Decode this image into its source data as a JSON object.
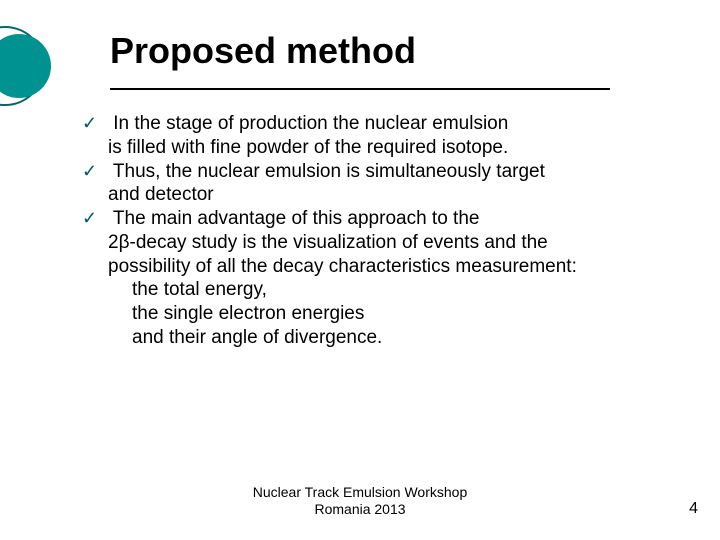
{
  "colors": {
    "accent_ring": "#006666",
    "accent_fill": "#009191",
    "check": "#005a5a",
    "text": "#000000",
    "rule": "#000000",
    "background": "#ffffff"
  },
  "title": "Proposed method",
  "bullets": [
    {
      "lead": " In the stage of production the nuclear emulsion",
      "cont": [
        "is filled with fine powder of the required isotope."
      ],
      "sub": []
    },
    {
      "lead": " Thus, the nuclear emulsion  is  simultaneously target",
      "cont": [
        "and detector"
      ],
      "sub": []
    },
    {
      "lead": " The main  advantage of this  approach to the",
      "cont": [
        "2β-decay study is the visualization of events and the",
        "possibility of all the decay characteristics measurement:"
      ],
      "sub": [
        "the total energy,",
        "the single electron energies",
        "and their angle of divergence."
      ]
    }
  ],
  "footer_line1": "Nuclear Track Emulsion Workshop",
  "footer_line2": "Romania 2013",
  "page_number": "4"
}
